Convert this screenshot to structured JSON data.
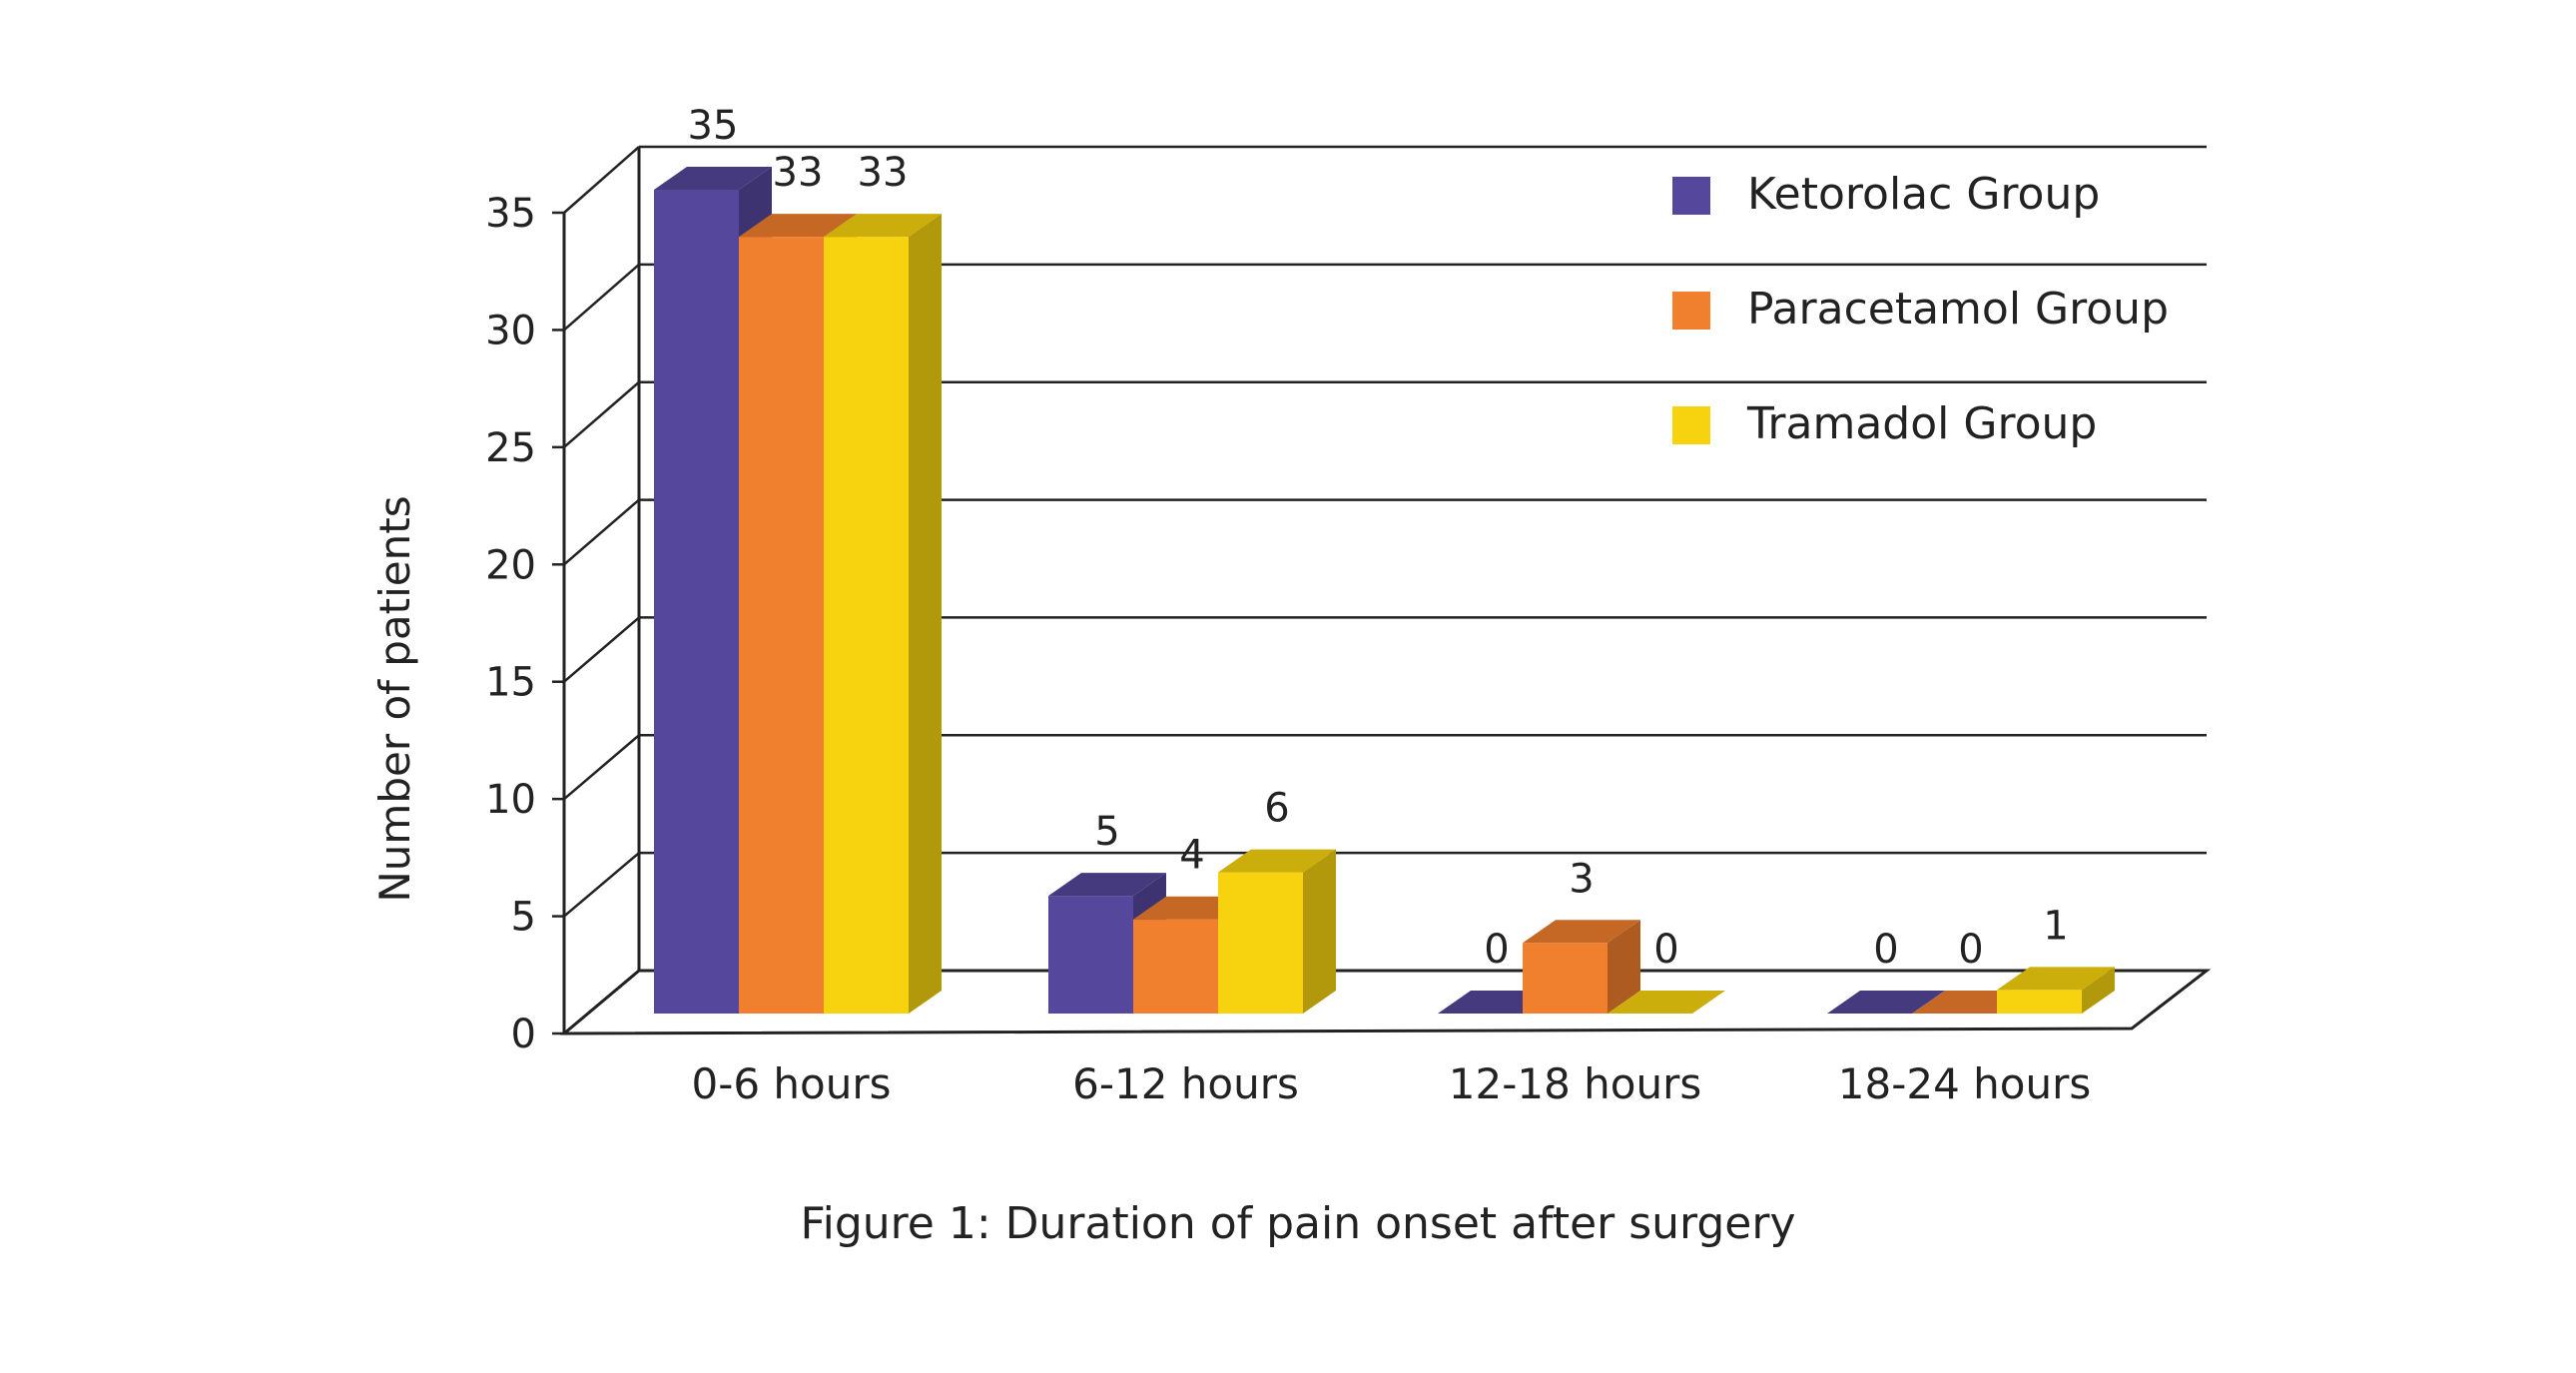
{
  "chart_data": {
    "type": "bar",
    "title": "",
    "caption": "Figure 1: Duration of pain onset after surgery",
    "xlabel": "",
    "ylabel": "Number of  patients",
    "ylim": [
      0,
      35
    ],
    "yticks": [
      "0",
      "5",
      "10",
      "15",
      "20",
      "25",
      "30",
      "35"
    ],
    "categories": [
      "0-6 hours",
      "6-12 hours",
      "12-18 hours",
      "18-24 hours"
    ],
    "series": [
      {
        "name": "Ketorolac Group",
        "values": [
          35,
          5,
          0,
          0
        ],
        "color": "#55479b"
      },
      {
        "name": "Paracetamol Group",
        "values": [
          33,
          4,
          3,
          0
        ],
        "color": "#f07f2e"
      },
      {
        "name": "Tramadol Group",
        "values": [
          33,
          6,
          0,
          1
        ],
        "color": "#f7d30f"
      }
    ],
    "grid": true,
    "legend": "top-right",
    "style": "3d-bar"
  }
}
